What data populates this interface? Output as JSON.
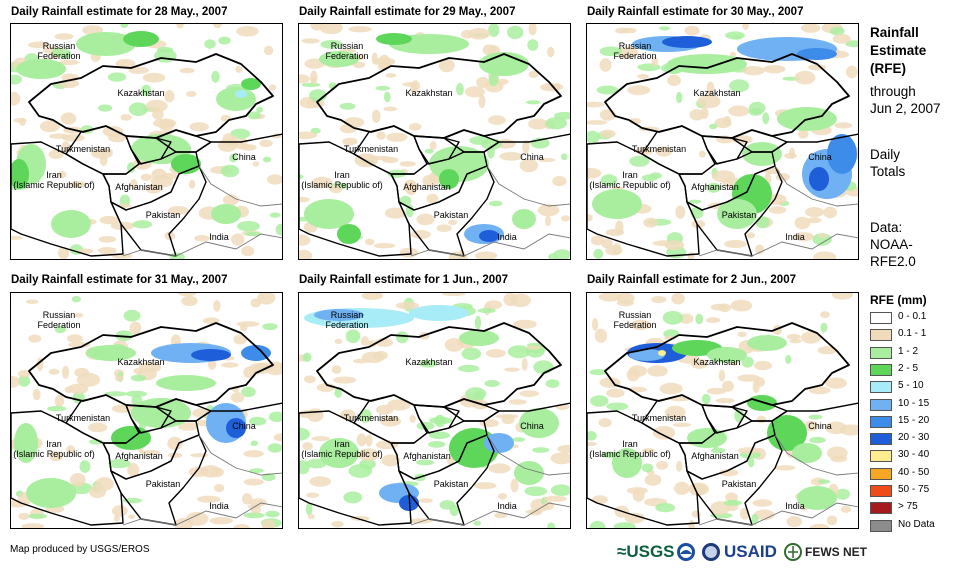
{
  "panels": [
    {
      "title": "Daily Rainfall estimate for 28 May., 2007"
    },
    {
      "title": "Daily Rainfall estimate for 29 May., 2007"
    },
    {
      "title": "Daily Rainfall estimate for 30 May., 2007"
    },
    {
      "title": "Daily Rainfall estimate for 31 May., 2007"
    },
    {
      "title": "Daily Rainfall estimate for 1 Jun., 2007"
    },
    {
      "title": "Daily Rainfall estimate for 2 Jun., 2007"
    }
  ],
  "map_labels": {
    "russia": "Russian\nFederation",
    "kazakhstan": "Kazakhstan",
    "turkmenistan": "Turkmenistan",
    "iran": "Iran\n(Islamic Republic of)",
    "afghanistan": "Afghanistan",
    "pakistan": "Pakistan",
    "china": "China",
    "india": "India"
  },
  "side": {
    "title_line1": "Rainfall",
    "title_line2": "Estimate",
    "title_line3": "(RFE)",
    "through": "through",
    "date": "Jun 2, 2007",
    "daily": "Daily",
    "totals": "Totals",
    "data_label": "Data:",
    "data_src1": "NOAA-",
    "data_src2": "RFE2.0"
  },
  "legend": {
    "title": "RFE (mm)",
    "items": [
      {
        "label": "0 - 0.1",
        "color": "#ffffff"
      },
      {
        "label": "0.1 - 1",
        "color": "#f0dcbc"
      },
      {
        "label": "1 - 2",
        "color": "#a9ee9f"
      },
      {
        "label": "2 - 5",
        "color": "#5dd65a"
      },
      {
        "label": "5 - 10",
        "color": "#a8ecf7"
      },
      {
        "label": "10 - 15",
        "color": "#6fb1f2"
      },
      {
        "label": "15 - 20",
        "color": "#3d8ce9"
      },
      {
        "label": "20 - 30",
        "color": "#1f5ed9"
      },
      {
        "label": "30 - 40",
        "color": "#ffec8f"
      },
      {
        "label": "40 - 50",
        "color": "#f6a623"
      },
      {
        "label": "50 - 75",
        "color": "#f04c1b"
      },
      {
        "label": "> 75",
        "color": "#a6191d"
      },
      {
        "label": "No Data",
        "color": "#8c8c8c"
      }
    ]
  },
  "footer": {
    "credit": "Map produced by USGS/EROS"
  },
  "logos": {
    "usgs": "≈USGS",
    "usaid": "USAID",
    "fews": "FEWS NET"
  }
}
